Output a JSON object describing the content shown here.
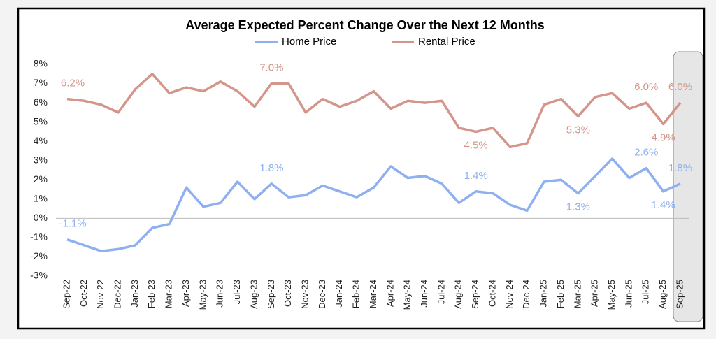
{
  "chart_data": {
    "type": "line",
    "title": "Average Expected Percent Change Over the Next 12 Months",
    "categories": [
      "Sep-22",
      "Oct-22",
      "Nov-22",
      "Dec-22",
      "Jan-23",
      "Feb-23",
      "Mar-23",
      "Apr-23",
      "May-23",
      "Jun-23",
      "Jul-23",
      "Aug-23",
      "Sep-23",
      "Oct-23",
      "Nov-23",
      "Dec-23",
      "Jan-24",
      "Feb-24",
      "Mar-24",
      "Apr-24",
      "May-24",
      "Jun-24",
      "Jul-24",
      "Aug-24",
      "Sep-24",
      "Oct-24",
      "Nov-24",
      "Dec-24",
      "Jan-25",
      "Feb-25",
      "Mar-25",
      "Apr-25",
      "May-25",
      "Jun-25",
      "Jul-25",
      "Aug-25",
      "Sep-25"
    ],
    "series": [
      {
        "name": "Home Price",
        "color": "#8fb0f0",
        "values": [
          -1.1,
          -1.4,
          -1.7,
          -1.6,
          -1.4,
          -0.5,
          -0.3,
          1.6,
          0.6,
          0.8,
          1.9,
          1.0,
          1.8,
          1.1,
          1.2,
          1.7,
          1.4,
          1.1,
          1.6,
          2.7,
          2.1,
          2.2,
          1.8,
          0.8,
          1.4,
          1.3,
          0.7,
          0.4,
          1.9,
          2.0,
          1.3,
          2.2,
          3.1,
          2.1,
          2.6,
          1.4,
          1.8
        ],
        "value_labels": [
          "-1.1%",
          null,
          null,
          null,
          null,
          null,
          null,
          null,
          null,
          null,
          null,
          null,
          "1.8%",
          null,
          null,
          null,
          null,
          null,
          null,
          null,
          null,
          null,
          null,
          null,
          "1.4%",
          null,
          null,
          null,
          null,
          null,
          "1.3%",
          null,
          null,
          null,
          "2.6%",
          "1.4%",
          "1.8%"
        ]
      },
      {
        "name": "Rental Price",
        "color": "#d4958a",
        "values": [
          6.2,
          6.1,
          5.9,
          5.5,
          6.7,
          7.5,
          6.5,
          6.8,
          6.6,
          7.1,
          6.6,
          5.8,
          7.0,
          7.0,
          5.5,
          6.2,
          5.8,
          6.1,
          6.6,
          5.7,
          6.1,
          6.0,
          6.1,
          4.7,
          4.5,
          4.7,
          3.7,
          3.9,
          5.9,
          6.2,
          5.3,
          6.3,
          6.5,
          5.7,
          6.0,
          4.9,
          6.0
        ],
        "value_labels": [
          "6.2%",
          null,
          null,
          null,
          null,
          null,
          null,
          null,
          null,
          null,
          null,
          null,
          "7.0%",
          null,
          null,
          null,
          null,
          null,
          null,
          null,
          null,
          null,
          null,
          null,
          "4.5%",
          null,
          null,
          null,
          null,
          null,
          "5.3%",
          null,
          null,
          null,
          "6.0%",
          "4.9%",
          "6.0%"
        ]
      }
    ],
    "ylim": [
      -3,
      8
    ],
    "yticks": [
      {
        "value": -3,
        "label": "-3%"
      },
      {
        "value": -2,
        "label": "-2%"
      },
      {
        "value": -1,
        "label": "-1%"
      },
      {
        "value": 0,
        "label": "0%"
      },
      {
        "value": 1,
        "label": "1%"
      },
      {
        "value": 2,
        "label": "2%"
      },
      {
        "value": 3,
        "label": "3%"
      },
      {
        "value": 4,
        "label": "4%"
      },
      {
        "value": 5,
        "label": "5%"
      },
      {
        "value": 6,
        "label": "6%"
      },
      {
        "value": 7,
        "label": "7%"
      },
      {
        "value": 8,
        "label": "8%"
      }
    ],
    "legend": "top"
  }
}
